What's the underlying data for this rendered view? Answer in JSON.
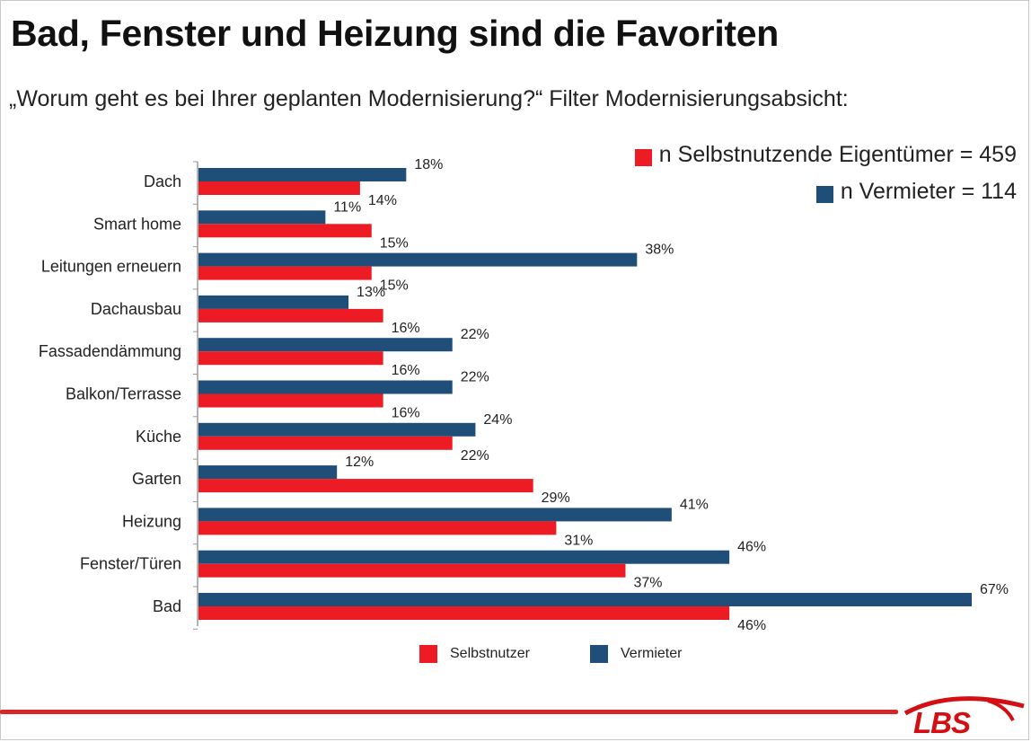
{
  "title": "Bad, Fenster und Heizung sind die Favoriten",
  "subtitle": "„Worum geht es bei Ihrer geplanten Modernisierung?“ Filter Modernisierungsabsicht:",
  "sample_notes": {
    "owners": "n Selbstnutzende Eigentümer = 459",
    "landlords": "n Vermieter = 114"
  },
  "colors": {
    "owners": "#ed1c24",
    "landlords": "#1f4e79"
  },
  "legend": {
    "owners": "Selbstnutzer",
    "landlords": "Vermieter"
  },
  "logo": {
    "text": "LBS"
  },
  "chart_data": {
    "type": "bar",
    "orientation": "horizontal",
    "categories": [
      "Dach",
      "Smart home",
      "Leitungen erneuern",
      "Dachausbau",
      "Fassadendämmung",
      "Balkon/Terrasse",
      "Küche",
      "Garten",
      "Heizung",
      "Fenster/Türen",
      "Bad"
    ],
    "series": [
      {
        "name": "Vermieter",
        "values": [
          18,
          11,
          38,
          13,
          22,
          22,
          24,
          12,
          41,
          46,
          67
        ]
      },
      {
        "name": "Selbstnutzer",
        "values": [
          14,
          15,
          15,
          16,
          16,
          16,
          22,
          29,
          31,
          37,
          46
        ]
      }
    ],
    "value_suffix": "%",
    "xlim": [
      0,
      67
    ],
    "grid": false,
    "legend_position": "bottom"
  }
}
